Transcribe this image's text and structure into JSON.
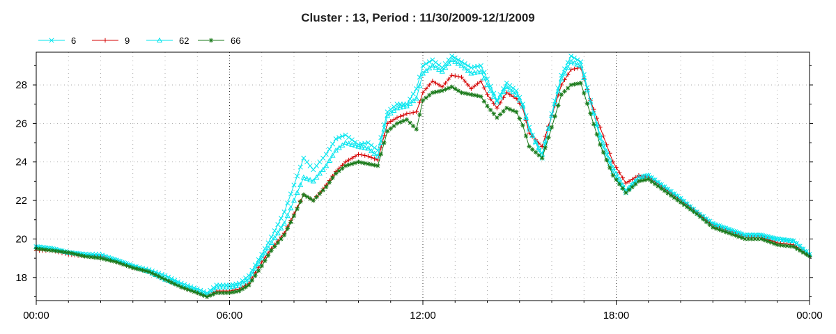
{
  "chart_data": {
    "type": "line",
    "title": "Cluster : 13, Period : 11/30/2009-12/1/2009",
    "xlabel": "",
    "ylabel": "",
    "x_unit": "hours",
    "xlim": [
      0,
      24
    ],
    "ylim": [
      16.8,
      29.7
    ],
    "x_ticks": [
      {
        "value": 0,
        "label": "00:00"
      },
      {
        "value": 6,
        "label": "06:00"
      },
      {
        "value": 12,
        "label": "12:00"
      },
      {
        "value": 18,
        "label": "18:00"
      },
      {
        "value": 24,
        "label": "00:00"
      }
    ],
    "y_ticks": [
      18,
      20,
      22,
      24,
      26,
      28
    ],
    "grid": true,
    "legend_position": "top-left",
    "series": [
      {
        "name": "6",
        "color": "#00e5ee",
        "marker": "x",
        "points": [
          [
            0,
            19.6
          ],
          [
            0.5,
            19.5
          ],
          [
            1,
            19.3
          ],
          [
            1.5,
            19.2
          ],
          [
            2,
            19.1
          ],
          [
            2.5,
            18.9
          ],
          [
            3,
            18.6
          ],
          [
            3.5,
            18.4
          ],
          [
            4,
            18.1
          ],
          [
            4.5,
            17.7
          ],
          [
            5,
            17.4
          ],
          [
            5.3,
            17.2
          ],
          [
            5.6,
            17.6
          ],
          [
            6,
            17.6
          ],
          [
            6.3,
            17.7
          ],
          [
            6.6,
            18.1
          ],
          [
            7,
            19.2
          ],
          [
            7.3,
            20.1
          ],
          [
            7.7,
            21.4
          ],
          [
            8,
            22.8
          ],
          [
            8.3,
            24.2
          ],
          [
            8.6,
            23.6
          ],
          [
            9,
            24.4
          ],
          [
            9.3,
            25.2
          ],
          [
            9.6,
            25.4
          ],
          [
            10,
            24.9
          ],
          [
            10.3,
            25.0
          ],
          [
            10.6,
            24.6
          ],
          [
            10.9,
            26.6
          ],
          [
            11.2,
            27.0
          ],
          [
            11.5,
            27.0
          ],
          [
            11.8,
            27.8
          ],
          [
            12,
            29.0
          ],
          [
            12.3,
            29.3
          ],
          [
            12.6,
            28.9
          ],
          [
            12.9,
            29.5
          ],
          [
            13.2,
            29.2
          ],
          [
            13.5,
            28.9
          ],
          [
            13.8,
            29.0
          ],
          [
            14,
            28.3
          ],
          [
            14.3,
            27.2
          ],
          [
            14.6,
            28.1
          ],
          [
            14.9,
            27.7
          ],
          [
            15.1,
            27.0
          ],
          [
            15.3,
            25.8
          ],
          [
            15.7,
            24.2
          ],
          [
            16,
            26.5
          ],
          [
            16.3,
            28.5
          ],
          [
            16.6,
            29.5
          ],
          [
            16.9,
            29.2
          ],
          [
            17.2,
            27.2
          ],
          [
            17.5,
            25.2
          ],
          [
            17.9,
            23.5
          ],
          [
            18.3,
            22.4
          ],
          [
            18.7,
            23.2
          ],
          [
            19,
            23.3
          ],
          [
            19.5,
            22.7
          ],
          [
            20,
            22.1
          ],
          [
            20.5,
            21.4
          ],
          [
            21,
            20.8
          ],
          [
            21.5,
            20.5
          ],
          [
            22,
            20.2
          ],
          [
            22.5,
            20.2
          ],
          [
            23,
            20.0
          ],
          [
            23.5,
            19.9
          ],
          [
            24,
            19.2
          ]
        ]
      },
      {
        "name": "9",
        "color": "#d40000",
        "marker": "+",
        "points": [
          [
            0,
            19.4
          ],
          [
            0.5,
            19.4
          ],
          [
            1,
            19.2
          ],
          [
            1.5,
            19.1
          ],
          [
            2,
            19.1
          ],
          [
            2.5,
            18.8
          ],
          [
            3,
            18.5
          ],
          [
            3.5,
            18.3
          ],
          [
            4,
            17.9
          ],
          [
            4.5,
            17.5
          ],
          [
            5,
            17.2
          ],
          [
            5.3,
            17.0
          ],
          [
            5.6,
            17.3
          ],
          [
            6,
            17.3
          ],
          [
            6.3,
            17.4
          ],
          [
            6.6,
            17.7
          ],
          [
            7,
            18.8
          ],
          [
            7.3,
            19.5
          ],
          [
            7.7,
            20.3
          ],
          [
            8,
            21.3
          ],
          [
            8.3,
            22.3
          ],
          [
            8.6,
            22.0
          ],
          [
            9,
            22.8
          ],
          [
            9.3,
            23.5
          ],
          [
            9.6,
            24.0
          ],
          [
            10,
            24.4
          ],
          [
            10.3,
            24.3
          ],
          [
            10.6,
            24.1
          ],
          [
            10.9,
            26.0
          ],
          [
            11.2,
            26.3
          ],
          [
            11.5,
            26.5
          ],
          [
            11.8,
            26.6
          ],
          [
            12,
            27.6
          ],
          [
            12.3,
            28.2
          ],
          [
            12.6,
            27.9
          ],
          [
            12.9,
            28.5
          ],
          [
            13.2,
            28.4
          ],
          [
            13.5,
            27.8
          ],
          [
            13.8,
            28.2
          ],
          [
            14,
            27.5
          ],
          [
            14.3,
            26.8
          ],
          [
            14.6,
            27.6
          ],
          [
            14.9,
            27.3
          ],
          [
            15.1,
            26.8
          ],
          [
            15.3,
            25.5
          ],
          [
            15.7,
            24.8
          ],
          [
            16,
            26.4
          ],
          [
            16.3,
            28.0
          ],
          [
            16.6,
            28.8
          ],
          [
            16.9,
            28.9
          ],
          [
            17.2,
            27.2
          ],
          [
            17.5,
            25.8
          ],
          [
            17.9,
            24.0
          ],
          [
            18.3,
            22.9
          ],
          [
            18.7,
            23.3
          ],
          [
            19,
            23.2
          ],
          [
            19.5,
            22.6
          ],
          [
            20,
            22.0
          ],
          [
            20.5,
            21.4
          ],
          [
            21,
            20.7
          ],
          [
            21.5,
            20.4
          ],
          [
            22,
            20.1
          ],
          [
            22.5,
            20.1
          ],
          [
            23,
            19.8
          ],
          [
            23.5,
            19.7
          ],
          [
            24,
            19.1
          ]
        ]
      },
      {
        "name": "62",
        "color": "#00e5ee",
        "marker": "triangle",
        "points": [
          [
            0,
            19.6
          ],
          [
            0.5,
            19.5
          ],
          [
            1,
            19.3
          ],
          [
            1.5,
            19.2
          ],
          [
            2,
            19.2
          ],
          [
            2.5,
            18.9
          ],
          [
            3,
            18.6
          ],
          [
            3.5,
            18.3
          ],
          [
            4,
            17.9
          ],
          [
            4.5,
            17.6
          ],
          [
            5,
            17.3
          ],
          [
            5.3,
            17.1
          ],
          [
            5.6,
            17.5
          ],
          [
            6,
            17.5
          ],
          [
            6.3,
            17.6
          ],
          [
            6.6,
            17.9
          ],
          [
            7,
            19.0
          ],
          [
            7.3,
            19.8
          ],
          [
            7.7,
            20.8
          ],
          [
            8,
            22.0
          ],
          [
            8.3,
            23.2
          ],
          [
            8.6,
            23.0
          ],
          [
            9,
            23.8
          ],
          [
            9.3,
            24.6
          ],
          [
            9.6,
            25.0
          ],
          [
            10,
            24.8
          ],
          [
            10.3,
            24.7
          ],
          [
            10.6,
            24.3
          ],
          [
            10.9,
            26.4
          ],
          [
            11.2,
            26.8
          ],
          [
            11.5,
            26.9
          ],
          [
            11.8,
            27.3
          ],
          [
            12,
            28.6
          ],
          [
            12.3,
            29.0
          ],
          [
            12.6,
            28.7
          ],
          [
            12.9,
            29.3
          ],
          [
            13.2,
            29.0
          ],
          [
            13.5,
            28.6
          ],
          [
            13.8,
            28.7
          ],
          [
            14,
            28.0
          ],
          [
            14.3,
            27.1
          ],
          [
            14.6,
            27.9
          ],
          [
            14.9,
            27.5
          ],
          [
            15.1,
            26.9
          ],
          [
            15.3,
            25.7
          ],
          [
            15.7,
            24.4
          ],
          [
            16,
            26.4
          ],
          [
            16.3,
            28.3
          ],
          [
            16.6,
            29.2
          ],
          [
            16.9,
            29.0
          ],
          [
            17.2,
            27.1
          ],
          [
            17.5,
            25.4
          ],
          [
            17.9,
            23.7
          ],
          [
            18.3,
            22.5
          ],
          [
            18.7,
            23.2
          ],
          [
            19,
            23.3
          ],
          [
            19.5,
            22.7
          ],
          [
            20,
            22.1
          ],
          [
            20.5,
            21.4
          ],
          [
            21,
            20.8
          ],
          [
            21.5,
            20.5
          ],
          [
            22,
            20.2
          ],
          [
            22.5,
            20.2
          ],
          [
            23,
            20.0
          ],
          [
            23.5,
            19.9
          ],
          [
            24,
            19.2
          ]
        ]
      },
      {
        "name": "66",
        "color": "#1a7a1a",
        "marker": "asterisk",
        "points": [
          [
            0,
            19.5
          ],
          [
            0.5,
            19.4
          ],
          [
            1,
            19.3
          ],
          [
            1.5,
            19.1
          ],
          [
            2,
            19.0
          ],
          [
            2.5,
            18.8
          ],
          [
            3,
            18.5
          ],
          [
            3.5,
            18.3
          ],
          [
            4,
            17.9
          ],
          [
            4.5,
            17.5
          ],
          [
            5,
            17.2
          ],
          [
            5.3,
            17.0
          ],
          [
            5.6,
            17.2
          ],
          [
            6,
            17.2
          ],
          [
            6.3,
            17.3
          ],
          [
            6.6,
            17.6
          ],
          [
            7,
            18.6
          ],
          [
            7.3,
            19.4
          ],
          [
            7.7,
            20.2
          ],
          [
            8,
            21.2
          ],
          [
            8.3,
            22.3
          ],
          [
            8.6,
            22.0
          ],
          [
            9,
            22.7
          ],
          [
            9.3,
            23.4
          ],
          [
            9.6,
            23.8
          ],
          [
            10,
            24.0
          ],
          [
            10.3,
            23.9
          ],
          [
            10.6,
            23.8
          ],
          [
            10.9,
            25.6
          ],
          [
            11.2,
            26.0
          ],
          [
            11.5,
            26.2
          ],
          [
            11.8,
            25.7
          ],
          [
            12,
            27.2
          ],
          [
            12.3,
            27.6
          ],
          [
            12.6,
            27.7
          ],
          [
            12.9,
            27.9
          ],
          [
            13.2,
            27.6
          ],
          [
            13.5,
            27.5
          ],
          [
            13.8,
            27.4
          ],
          [
            14,
            26.9
          ],
          [
            14.3,
            26.3
          ],
          [
            14.6,
            26.8
          ],
          [
            14.9,
            26.6
          ],
          [
            15.1,
            25.9
          ],
          [
            15.3,
            24.8
          ],
          [
            15.7,
            24.2
          ],
          [
            16,
            25.8
          ],
          [
            16.3,
            27.5
          ],
          [
            16.6,
            28.0
          ],
          [
            16.9,
            28.1
          ],
          [
            17.2,
            26.5
          ],
          [
            17.5,
            24.9
          ],
          [
            17.9,
            23.3
          ],
          [
            18.3,
            22.4
          ],
          [
            18.7,
            23.0
          ],
          [
            19,
            23.1
          ],
          [
            19.5,
            22.5
          ],
          [
            20,
            21.9
          ],
          [
            20.5,
            21.3
          ],
          [
            21,
            20.6
          ],
          [
            21.5,
            20.3
          ],
          [
            22,
            20.0
          ],
          [
            22.5,
            20.0
          ],
          [
            23,
            19.7
          ],
          [
            23.5,
            19.6
          ],
          [
            24,
            19.1
          ]
        ]
      }
    ]
  }
}
